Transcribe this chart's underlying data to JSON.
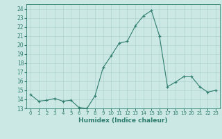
{
  "xlabel": "Humidex (Indice chaleur)",
  "x": [
    0,
    1,
    2,
    3,
    4,
    5,
    6,
    7,
    8,
    9,
    10,
    11,
    12,
    13,
    14,
    15,
    16,
    17,
    18,
    19,
    20,
    21,
    22,
    23
  ],
  "y": [
    14.5,
    13.8,
    13.9,
    14.1,
    13.8,
    13.9,
    13.1,
    13.0,
    14.4,
    17.5,
    18.8,
    20.2,
    20.4,
    22.1,
    23.2,
    23.8,
    21.0,
    15.4,
    15.9,
    16.5,
    16.5,
    15.4,
    14.8,
    15.0
  ],
  "line_color": "#2e7d6e",
  "marker": "+",
  "bg_color": "#cce8e4",
  "grid_color": "#aed4d0",
  "ylim": [
    13,
    24.5
  ],
  "yticks": [
    13,
    14,
    15,
    16,
    17,
    18,
    19,
    20,
    21,
    22,
    23,
    24
  ],
  "figsize": [
    3.2,
    2.0
  ],
  "dpi": 100
}
